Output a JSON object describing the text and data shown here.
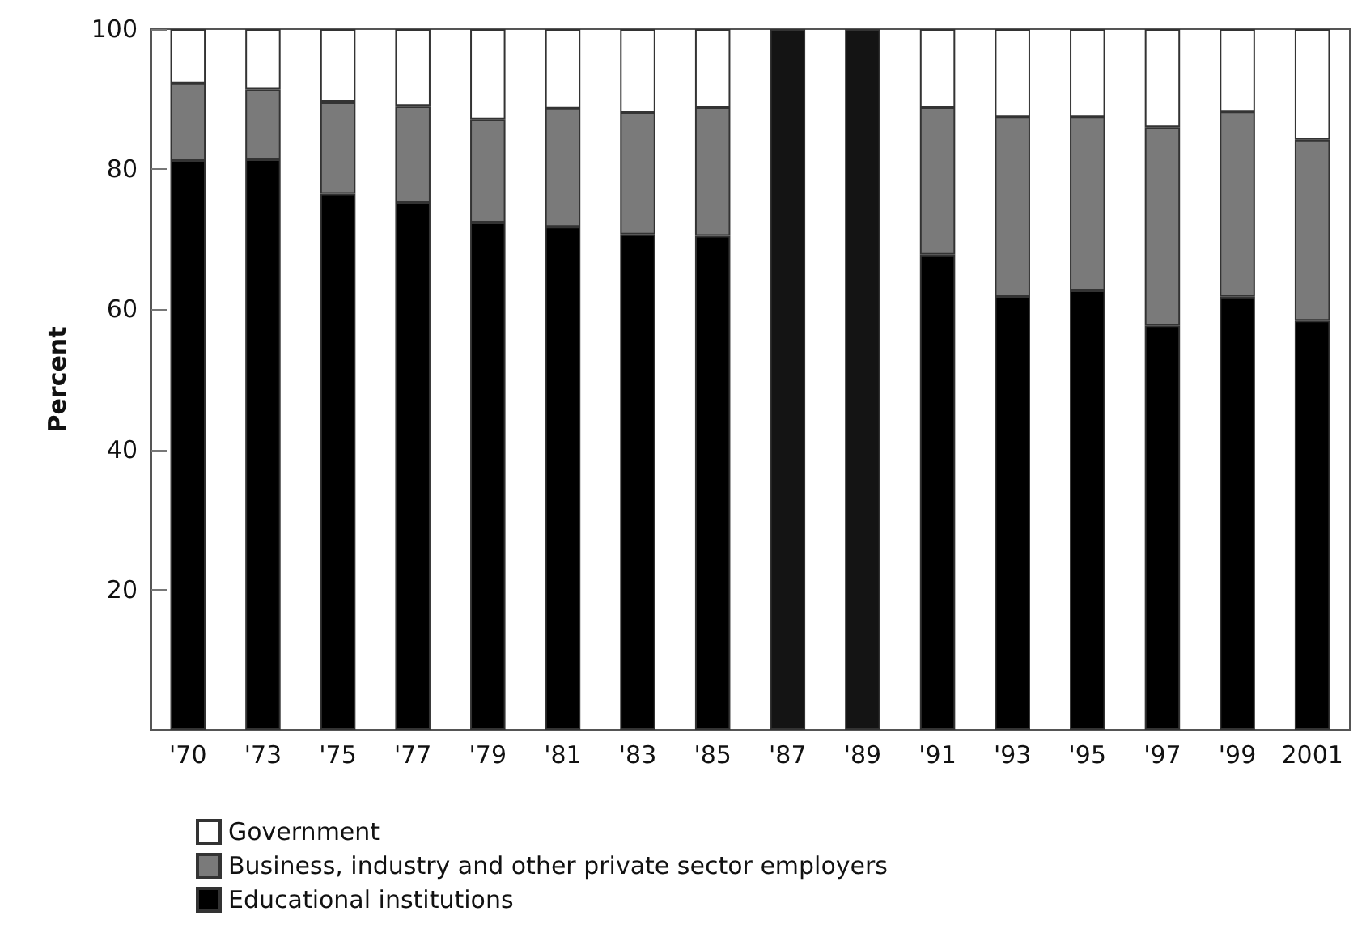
{
  "chart_data": {
    "type": "bar",
    "stacked": true,
    "ylabel": "Percent",
    "categories": [
      "'70",
      "'73",
      "'75",
      "'77",
      "'79",
      "'81",
      "'83",
      "'85",
      "'87",
      "'89",
      "'91",
      "'93",
      "'95",
      "'97",
      "'99",
      "2001"
    ],
    "series": [
      {
        "name": "Educational institutions",
        "color": "#000000",
        "values": [
          81.3,
          81.4,
          76.5,
          75.3,
          72.4,
          71.8,
          70.7,
          70.5,
          null,
          null,
          67.8,
          61.9,
          62.7,
          57.7,
          61.8,
          58.4
        ]
      },
      {
        "name": "Business, industry and other private sector employers",
        "color": "#7a7a7a",
        "values": [
          11.0,
          10.0,
          13.1,
          13.7,
          14.7,
          16.9,
          17.4,
          18.3,
          null,
          null,
          21.0,
          25.6,
          24.8,
          28.3,
          26.4,
          25.8
        ]
      },
      {
        "name": "Government",
        "color": "#ffffff",
        "values": [
          7.7,
          8.6,
          10.4,
          11.0,
          12.9,
          11.3,
          11.9,
          11.2,
          null,
          null,
          11.2,
          12.5,
          12.5,
          14.0,
          11.8,
          15.8
        ]
      },
      {
        "color": "#141414",
        "values": [
          null,
          null,
          null,
          null,
          null,
          null,
          null,
          null,
          100,
          100,
          null,
          null,
          null,
          null,
          null,
          null
        ]
      }
    ],
    "ylim": [
      0,
      100
    ],
    "yticks": [
      20,
      40,
      60,
      80,
      100
    ],
    "grid": false,
    "legend": "bottom left"
  }
}
